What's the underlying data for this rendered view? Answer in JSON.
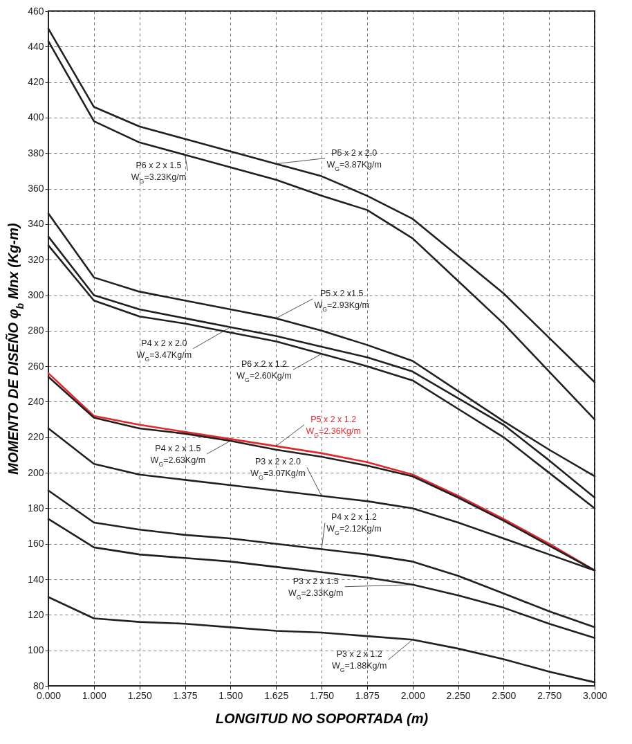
{
  "chart_data": {
    "type": "line",
    "xlabel": "LONGITUD NO SOPORTADA (m)",
    "ylabel": "MOMENTO DE DISEÑO   φ$_{b}$ Mnx (Kg-m)",
    "categories": [
      "0.000",
      "1.000",
      "1.250",
      "1.375",
      "1.500",
      "1.625",
      "1.750",
      "1.875",
      "2.000",
      "2.250",
      "2.500",
      "2.750",
      "3.000"
    ],
    "ylim": [
      80,
      460
    ],
    "yticks": [
      80,
      100,
      120,
      140,
      160,
      180,
      200,
      220,
      240,
      260,
      280,
      300,
      320,
      340,
      360,
      380,
      400,
      420,
      440,
      460
    ],
    "grid": true,
    "series": [
      {
        "color": "#231f20",
        "values": [
          450,
          406,
          395,
          388,
          381,
          374,
          367,
          356,
          343,
          322,
          301,
          276,
          251
        ]
      },
      {
        "color": "#231f20",
        "values": [
          443,
          398,
          386,
          379,
          372,
          365,
          356,
          348,
          332,
          308,
          284,
          257,
          230
        ]
      },
      {
        "color": "#231f20",
        "values": [
          346,
          310,
          302,
          297,
          292,
          287,
          280,
          272,
          263,
          246,
          229,
          213,
          198
        ]
      },
      {
        "color": "#231f20",
        "values": [
          333,
          300,
          292,
          287,
          282,
          277,
          271,
          265,
          257,
          242,
          227,
          207,
          186
        ]
      },
      {
        "color": "#231f20",
        "values": [
          328,
          297,
          288,
          284,
          279,
          274,
          267,
          260,
          252,
          236,
          220,
          200,
          180
        ]
      },
      {
        "color": "#e0282e",
        "values": [
          256,
          232,
          227,
          223,
          219,
          215,
          211,
          206,
          199,
          187,
          174,
          160,
          145
        ]
      },
      {
        "color": "#231f20",
        "values": [
          254,
          231,
          225,
          222,
          218,
          213,
          209,
          204,
          198,
          186,
          173,
          159,
          145
        ]
      },
      {
        "color": "#231f20",
        "values": [
          225,
          205,
          199,
          196,
          193,
          190,
          187,
          184,
          180,
          172,
          163,
          154,
          145
        ]
      },
      {
        "color": "#231f20",
        "values": [
          190,
          172,
          168,
          165,
          163,
          160,
          157,
          154,
          150,
          142,
          132,
          122,
          113
        ]
      },
      {
        "color": "#231f20",
        "values": [
          174,
          158,
          154,
          152,
          150,
          147,
          144,
          141,
          137,
          131,
          124,
          115,
          107
        ]
      },
      {
        "color": "#231f20",
        "values": [
          130,
          118,
          116,
          115,
          113,
          111,
          110,
          108,
          106,
          101,
          95,
          88,
          82
        ]
      }
    ],
    "annotations": [
      {
        "text": "P5 x 2 x 2.0",
        "x": "1.625",
        "y": 374
      },
      {
        "text": "W$_{G}$=3.87Kg/m",
        "x": "1.625",
        "y": 374
      },
      {
        "text": "P6 x 2 x 1.5",
        "x": "1.375",
        "y": 379
      },
      {
        "text": "W$_{G}$=3.23Kg/m",
        "x": "1.375",
        "y": 379
      },
      {
        "text": "P5 x 2 x1.5",
        "x": "1.625",
        "y": 287
      },
      {
        "text": "W$_{G}$=2.93Kg/m",
        "x": "1.625",
        "y": 287
      },
      {
        "text": "P4 x 2 x 2.0",
        "x": "1.500",
        "y": 282
      },
      {
        "text": "W$_{G}$=3.47Kg/m",
        "x": "1.500",
        "y": 282
      },
      {
        "text": "P6 x 2 x 1.2",
        "x": "1.750",
        "y": 267
      },
      {
        "text": "W$_{G}$=2.60Kg/m",
        "x": "1.750",
        "y": 267
      },
      {
        "text": "P5 x 2 x 1.2",
        "x": "1.625",
        "y": 215
      },
      {
        "text": "W$_{G}$=2.36Kg/m",
        "x": "1.625",
        "y": 215
      },
      {
        "text": "P4 x 2 x 1.5",
        "x": "1.500",
        "y": 218
      },
      {
        "text": "W$_{G}$=2.63Kg/m",
        "x": "1.500",
        "y": 218
      },
      {
        "text": "P3 x 2 x 2.0",
        "x": "1.750",
        "y": 187
      },
      {
        "text": "W$_{G}$=3.07Kg/m",
        "x": "1.750",
        "y": 187
      },
      {
        "text": "P4 x 2 x 1.2",
        "x": "1.750",
        "y": 157
      },
      {
        "text": "W$_{G}$=2.12Kg/m",
        "x": "1.750",
        "y": 157
      },
      {
        "text": "P3 x 2 x 1.5",
        "x": "2.000",
        "y": 137
      },
      {
        "text": "W$_{G}$=2.33Kg/m",
        "x": "2.000",
        "y": 137
      },
      {
        "text": "P3 x 2 x 1.2",
        "x": "2.000",
        "y": 106
      },
      {
        "text": "W$_{G}$=1.88Kg/m",
        "x": "2.000",
        "y": 106
      }
    ]
  }
}
